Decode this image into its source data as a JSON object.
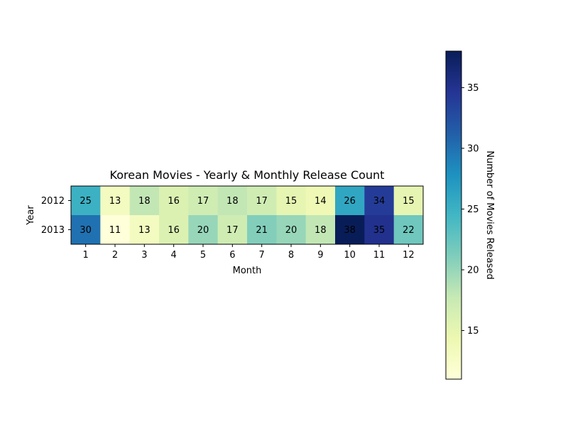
{
  "chart_data": {
    "type": "heatmap",
    "title": "Korean Movies - Yearly & Monthly Release Count",
    "xlabel": "Month",
    "ylabel": "Year",
    "x": [
      "1",
      "2",
      "3",
      "4",
      "5",
      "6",
      "7",
      "8",
      "9",
      "10",
      "11",
      "12"
    ],
    "y": [
      "2012",
      "2013"
    ],
    "values": [
      [
        25,
        13,
        18,
        16,
        17,
        18,
        17,
        15,
        14,
        26,
        34,
        15
      ],
      [
        30,
        11,
        13,
        16,
        20,
        17,
        21,
        20,
        18,
        38,
        35,
        22
      ]
    ],
    "colormap": "YlGnBu",
    "colorbar": {
      "label": "Number of Movies Released",
      "range": [
        11,
        38
      ],
      "ticks": [
        15,
        20,
        25,
        30,
        35
      ]
    }
  }
}
